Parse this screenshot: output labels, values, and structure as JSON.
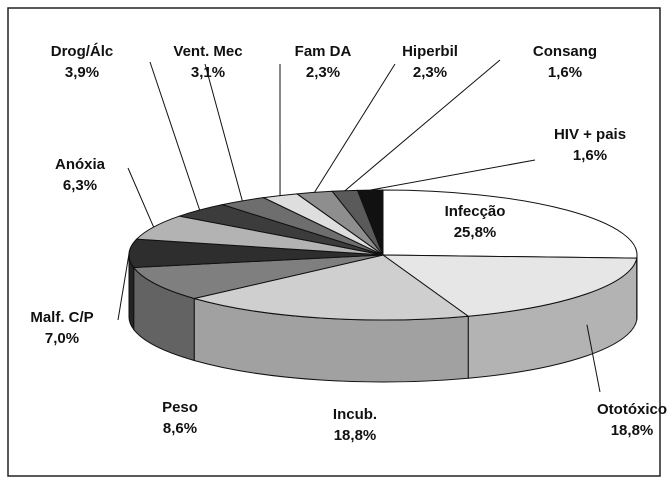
{
  "chart_data": {
    "type": "pie3d",
    "categories": [
      "Infecção",
      "Ototóxico",
      "Incub.",
      "Peso",
      "Malf. C/P",
      "Anóxia",
      "Drog/Álc",
      "Vent. Mec",
      "Fam DA",
      "Hiperbil",
      "Consang",
      "HIV + pais"
    ],
    "values": [
      25.8,
      18.8,
      18.8,
      8.6,
      7.0,
      6.3,
      3.9,
      3.1,
      2.3,
      2.3,
      1.6,
      1.6
    ],
    "value_labels": [
      "25,8%",
      "18,8%",
      "18,8%",
      "8,6%",
      "7,0%",
      "6,3%",
      "3,9%",
      "3,1%",
      "2,3%",
      "2,3%",
      "1,6%",
      "1,6%"
    ],
    "colors": [
      "#ffffff",
      "#e6e6e6",
      "#cfcfcf",
      "#7f7f7f",
      "#2e2e2e",
      "#b3b3b3",
      "#3c3c3c",
      "#6e6e6e",
      "#dedede",
      "#8e8e8e",
      "#5a5a5a",
      "#111111"
    ]
  }
}
